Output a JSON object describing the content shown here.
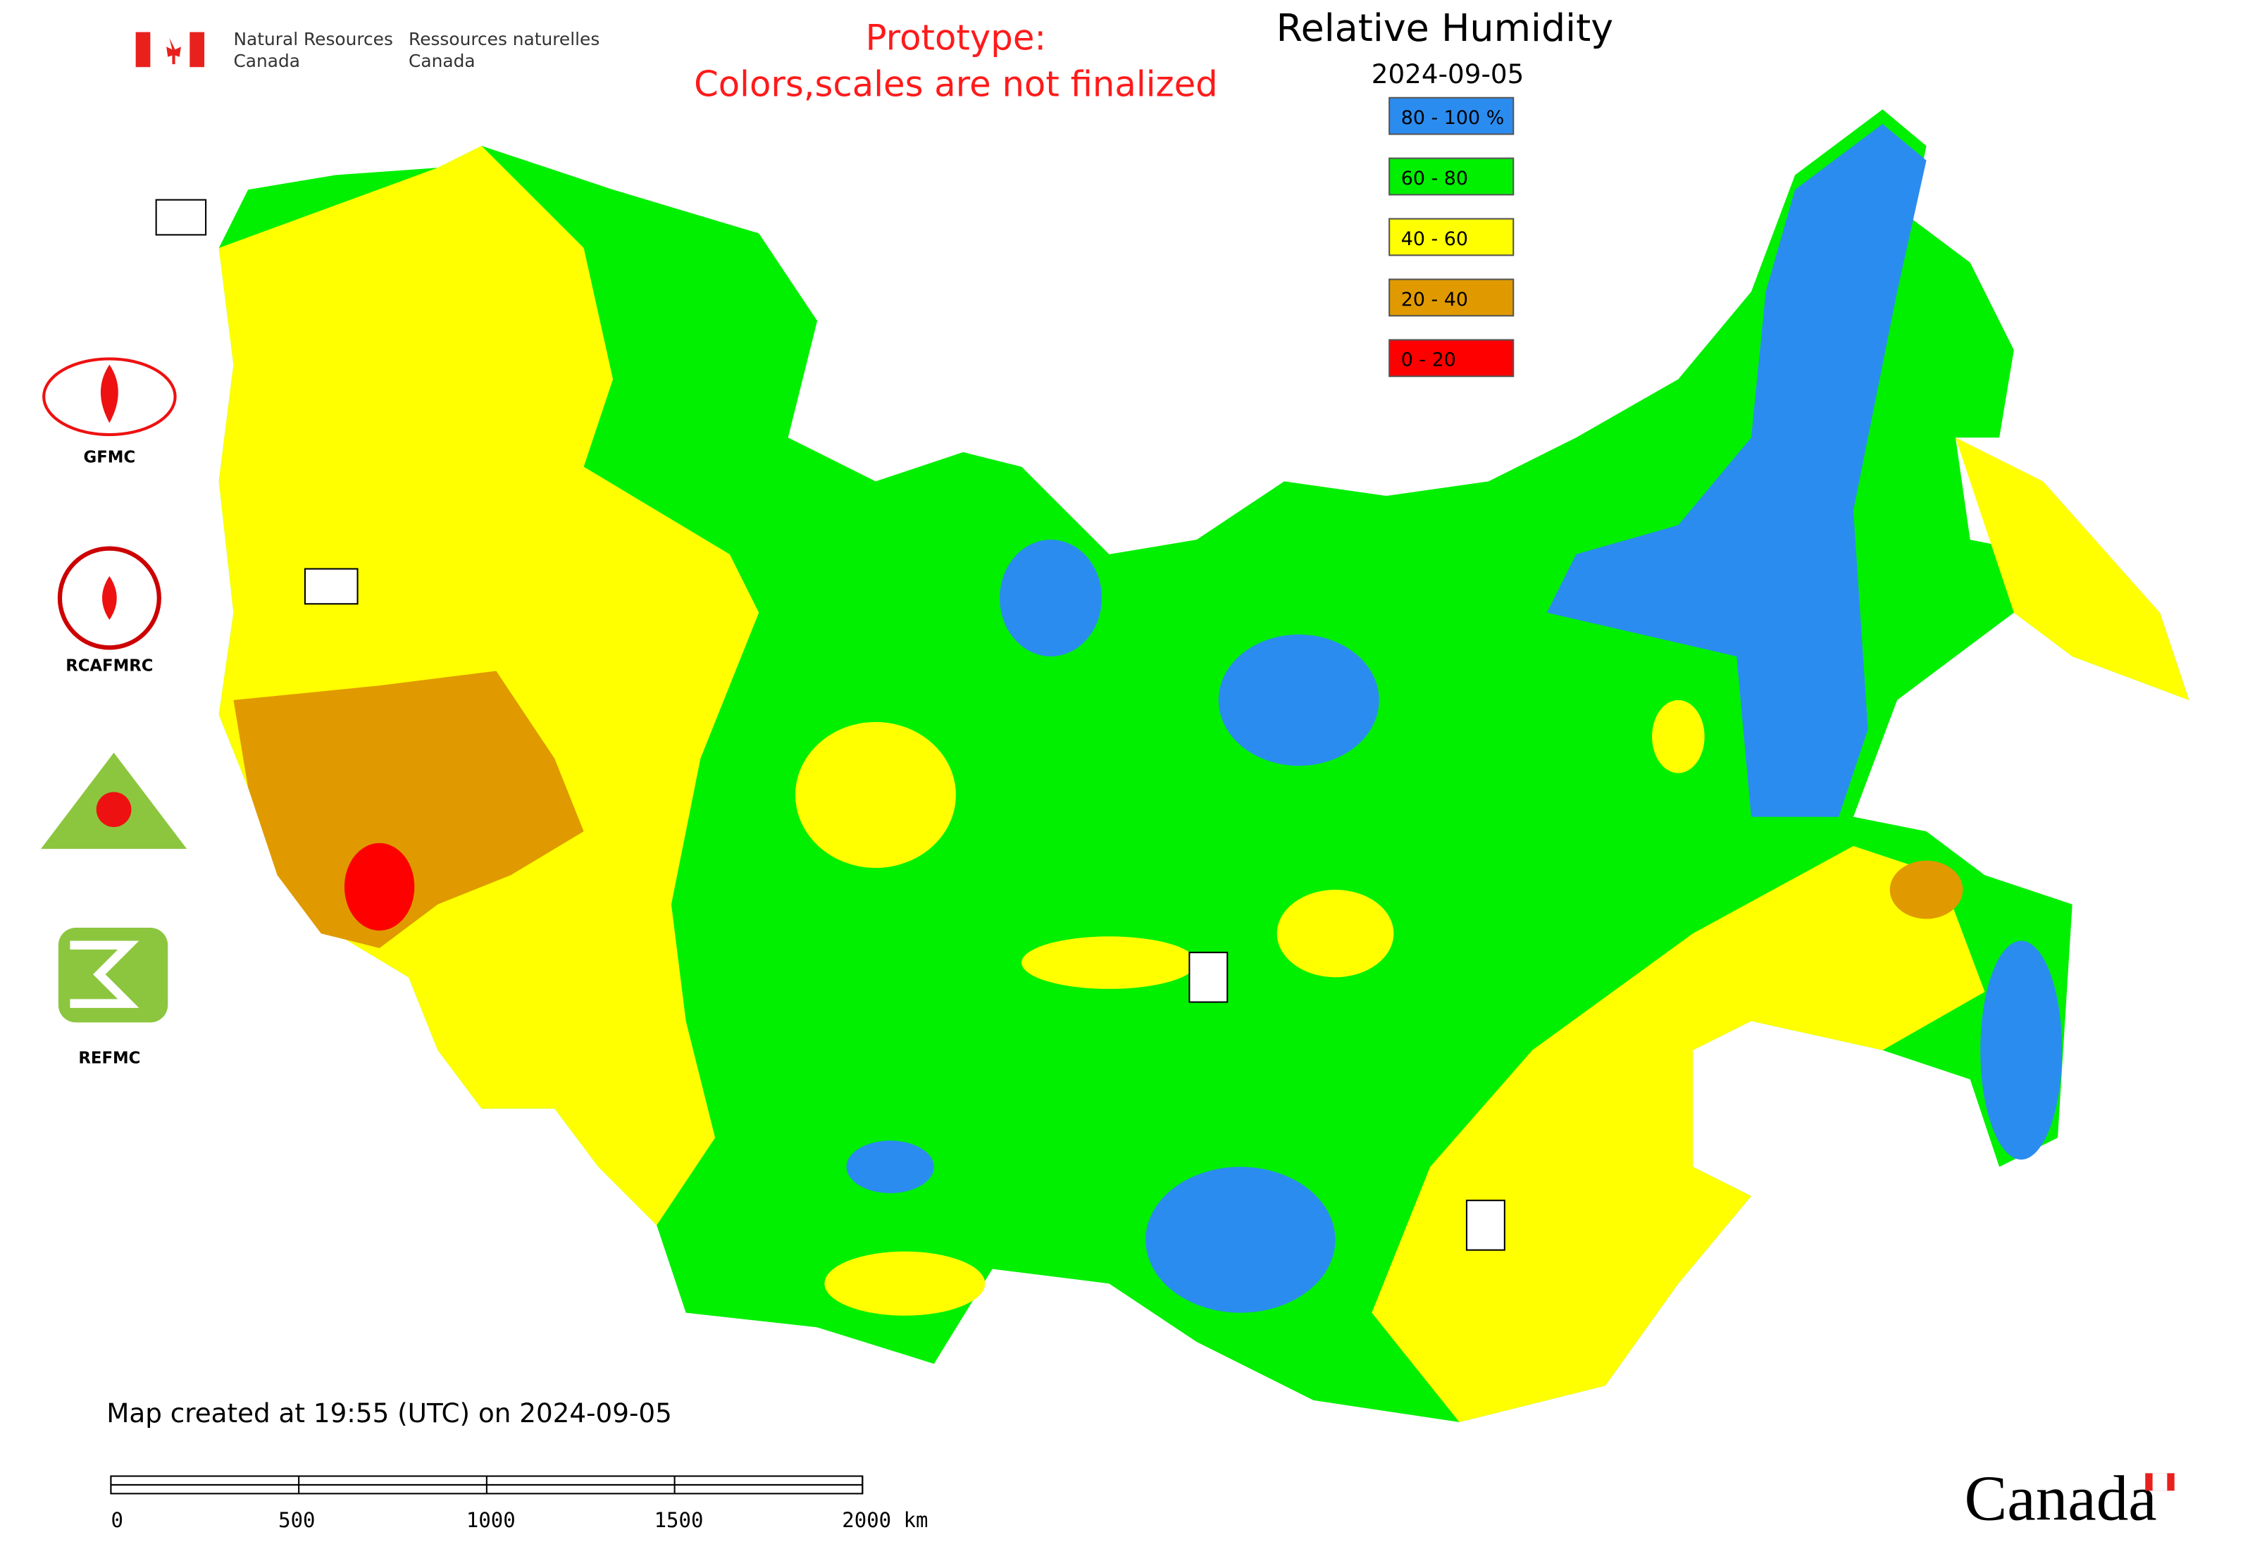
{
  "header": {
    "agency_en": [
      "Natural Resources",
      "Canada"
    ],
    "agency_fr": [
      "Ressources naturelles",
      "Canada"
    ],
    "notice": [
      "Prototype:",
      "Colors,scales are not finalized"
    ]
  },
  "legend": {
    "title": "Relative Humidity",
    "date": "2024-09-05",
    "classes": [
      {
        "label": "80 - 100 %",
        "color": "#2b8cf0"
      },
      {
        "label": "60 - 80",
        "color": "#00f000"
      },
      {
        "label": "40 - 60",
        "color": "#ffff00"
      },
      {
        "label": "20 - 40",
        "color": "#e09a00"
      },
      {
        "label": "0 - 20",
        "color": "#ff0000"
      }
    ]
  },
  "centres": [
    "GFMC",
    "RCAFMRC",
    "REFMC"
  ],
  "footer": {
    "created": "Map created at 19:55 (UTC) on 2024-09-05",
    "scale": [
      "0",
      "500",
      "1000",
      "1500",
      "2000 km"
    ],
    "wordmark": "Canada"
  }
}
